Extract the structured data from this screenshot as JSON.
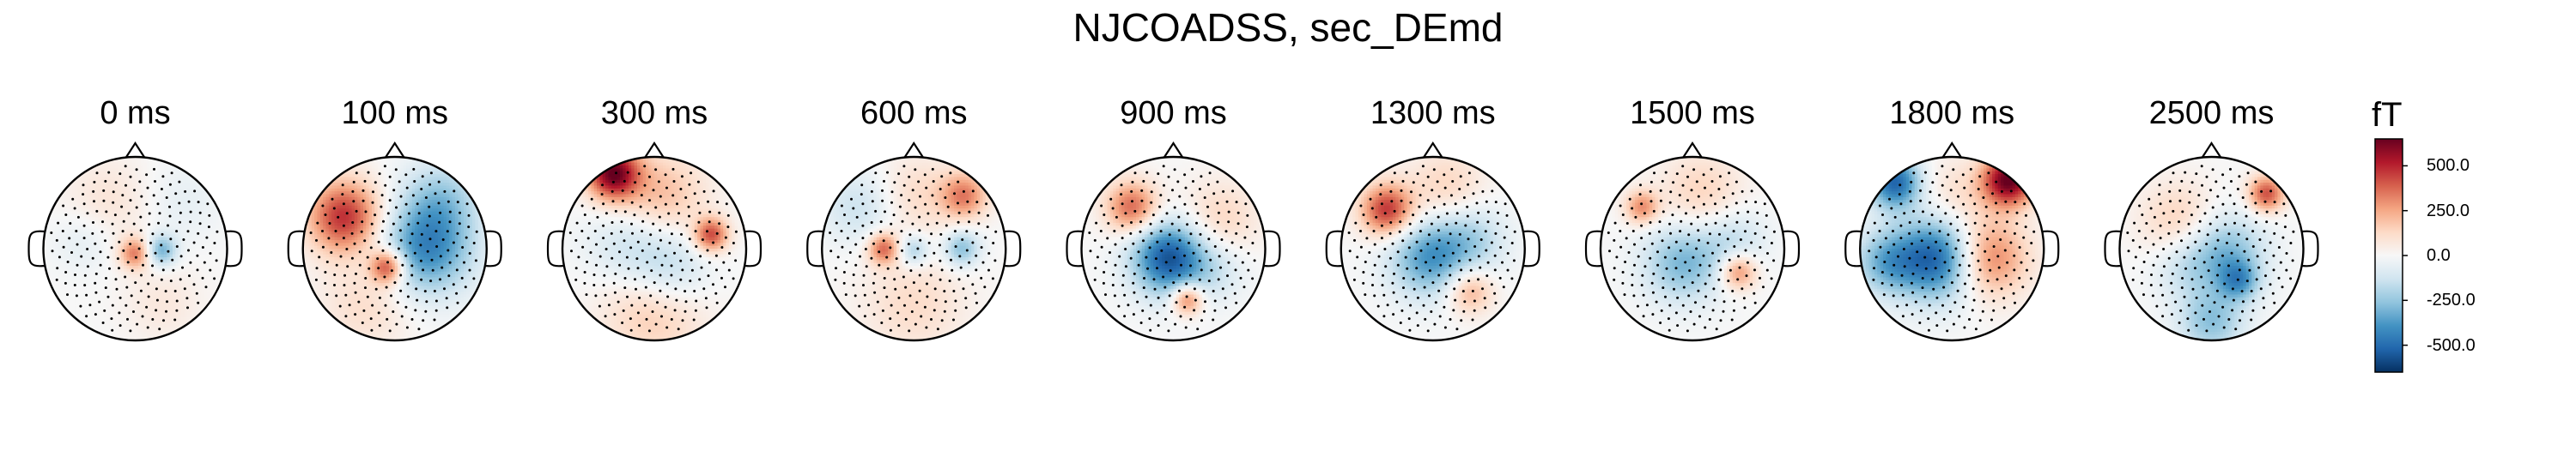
{
  "title": "NJCOADSS, sec_DEmd",
  "chart_data": {
    "type": "heatmap",
    "title": "NJCOADSS, sec_DEmd",
    "times": [
      "0 ms",
      "100 ms",
      "300 ms",
      "600 ms",
      "900 ms",
      "1300 ms",
      "1500 ms",
      "1800 ms",
      "2500 ms"
    ],
    "colorbar": {
      "unit": "fT",
      "range": [
        -650,
        650
      ],
      "ticks": [
        "500.0",
        "250.0",
        "0.0",
        "-250.0",
        "-500.0"
      ],
      "tick_values": [
        500,
        250,
        0,
        -250,
        -500
      ],
      "colormap": "RdBu_r"
    },
    "maps": [
      {
        "label": "0 ms",
        "sources": [
          {
            "x": 0.0,
            "y": -0.05,
            "amp": 330,
            "r": 0.12
          },
          {
            "x": 0.28,
            "y": -0.02,
            "amp": -320,
            "r": 0.12
          },
          {
            "x": -0.55,
            "y": 0.1,
            "amp": -80,
            "r": 0.25
          },
          {
            "x": -0.3,
            "y": 0.5,
            "amp": 90,
            "r": 0.35
          },
          {
            "x": 0.5,
            "y": 0.5,
            "amp": -60,
            "r": 0.3
          },
          {
            "x": 0.3,
            "y": -0.6,
            "amp": 70,
            "r": 0.3
          }
        ]
      },
      {
        "label": "100 ms",
        "sources": [
          {
            "x": -0.55,
            "y": 0.35,
            "amp": 480,
            "r": 0.28
          },
          {
            "x": 0.35,
            "y": 0.0,
            "amp": -420,
            "r": 0.35
          },
          {
            "x": -0.08,
            "y": -0.2,
            "amp": 460,
            "r": 0.13
          },
          {
            "x": 0.5,
            "y": 0.55,
            "amp": -200,
            "r": 0.3
          },
          {
            "x": -0.3,
            "y": -0.6,
            "amp": 120,
            "r": 0.35
          }
        ]
      },
      {
        "label": "300 ms",
        "sources": [
          {
            "x": -0.45,
            "y": 0.82,
            "amp": 620,
            "r": 0.2
          },
          {
            "x": 0.05,
            "y": 0.55,
            "amp": 230,
            "r": 0.35
          },
          {
            "x": 0.62,
            "y": 0.15,
            "amp": 420,
            "r": 0.13
          },
          {
            "x": -0.2,
            "y": 0.05,
            "amp": -180,
            "r": 0.35
          },
          {
            "x": 0.2,
            "y": -0.25,
            "amp": -170,
            "r": 0.3
          },
          {
            "x": 0.0,
            "y": -0.65,
            "amp": 190,
            "r": 0.4
          }
        ]
      },
      {
        "label": "600 ms",
        "sources": [
          {
            "x": -0.33,
            "y": 0.0,
            "amp": 360,
            "r": 0.12
          },
          {
            "x": 0.55,
            "y": 0.58,
            "amp": 320,
            "r": 0.18
          },
          {
            "x": 0.52,
            "y": 0.0,
            "amp": -280,
            "r": 0.14
          },
          {
            "x": 0.0,
            "y": -0.02,
            "amp": -230,
            "r": 0.12
          },
          {
            "x": -0.6,
            "y": 0.45,
            "amp": -140,
            "r": 0.28
          },
          {
            "x": 0.05,
            "y": 0.6,
            "amp": 120,
            "r": 0.3
          },
          {
            "x": 0.0,
            "y": -0.6,
            "amp": 120,
            "r": 0.4
          }
        ]
      },
      {
        "label": "900 ms",
        "sources": [
          {
            "x": -0.05,
            "y": -0.1,
            "amp": -560,
            "r": 0.28
          },
          {
            "x": -0.45,
            "y": 0.45,
            "amp": 380,
            "r": 0.2
          },
          {
            "x": 0.15,
            "y": -0.55,
            "amp": 380,
            "r": 0.12
          },
          {
            "x": 0.5,
            "y": 0.3,
            "amp": 150,
            "r": 0.3
          },
          {
            "x": 0.45,
            "y": -0.2,
            "amp": -120,
            "r": 0.25
          }
        ]
      },
      {
        "label": "1300 ms",
        "sources": [
          {
            "x": -0.5,
            "y": 0.42,
            "amp": 470,
            "r": 0.2
          },
          {
            "x": -0.05,
            "y": -0.1,
            "amp": -360,
            "r": 0.3
          },
          {
            "x": 0.4,
            "y": 0.1,
            "amp": -200,
            "r": 0.28
          },
          {
            "x": 0.4,
            "y": -0.45,
            "amp": 260,
            "r": 0.18
          },
          {
            "x": 0.15,
            "y": 0.65,
            "amp": 150,
            "r": 0.3
          }
        ]
      },
      {
        "label": "1500 ms",
        "sources": [
          {
            "x": -0.55,
            "y": 0.45,
            "amp": 300,
            "r": 0.13
          },
          {
            "x": 0.5,
            "y": -0.25,
            "amp": 330,
            "r": 0.14
          },
          {
            "x": -0.1,
            "y": -0.15,
            "amp": -300,
            "r": 0.3
          },
          {
            "x": 0.45,
            "y": 0.1,
            "amp": -150,
            "r": 0.25
          },
          {
            "x": 0.1,
            "y": 0.6,
            "amp": 150,
            "r": 0.32
          }
        ]
      },
      {
        "label": "1800 ms",
        "sources": [
          {
            "x": 0.62,
            "y": 0.75,
            "amp": 650,
            "r": 0.2
          },
          {
            "x": -0.62,
            "y": 0.72,
            "amp": -520,
            "r": 0.2
          },
          {
            "x": -0.15,
            "y": -0.1,
            "amp": -560,
            "r": 0.32
          },
          {
            "x": 0.38,
            "y": -0.1,
            "amp": 380,
            "r": 0.3
          },
          {
            "x": -0.72,
            "y": -0.15,
            "amp": -280,
            "r": 0.25
          },
          {
            "x": 0.05,
            "y": 0.55,
            "amp": 120,
            "r": 0.3
          }
        ]
      },
      {
        "label": "2500 ms",
        "sources": [
          {
            "x": 0.6,
            "y": 0.6,
            "amp": 420,
            "r": 0.14
          },
          {
            "x": 0.15,
            "y": -0.05,
            "amp": -300,
            "r": 0.3
          },
          {
            "x": 0.3,
            "y": -0.35,
            "amp": -280,
            "r": 0.15
          },
          {
            "x": 0.0,
            "y": -0.8,
            "amp": -260,
            "r": 0.25
          },
          {
            "x": -0.35,
            "y": 0.3,
            "amp": 160,
            "r": 0.3
          },
          {
            "x": -0.3,
            "y": -0.2,
            "amp": -120,
            "r": 0.25
          }
        ]
      }
    ]
  }
}
